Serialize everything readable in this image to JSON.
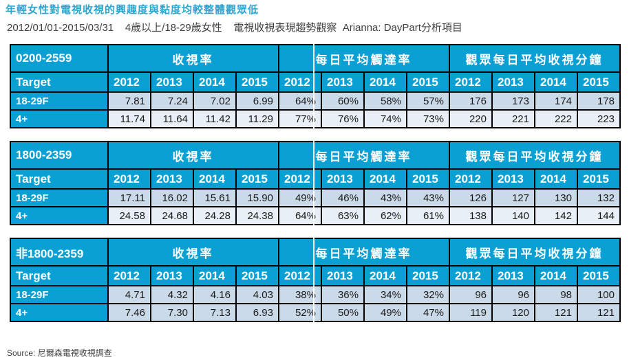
{
  "title": "年輕女性對電視收視的興趣度與黏度均較整體觀眾低",
  "subtitle": "2012/01/01-2015/03/31    4歲以上/18-29歲女性    電視收視表現趨勢觀察  Arianna: DayPart分析項目",
  "source": "Source: 尼爾森電視收視調查",
  "labels": {
    "target": "Target"
  },
  "colors": {
    "header_bg": "#0AA0D4",
    "header_text": "#FFFFFF",
    "title_text": "#2EA6D0",
    "subtitle_text": "#404040",
    "row_dark_bg": "#CBDAE9",
    "row_light_bg": "#E9EFF6",
    "border": "#000000",
    "guide_line": "#FFFFFF"
  },
  "chart_data": [
    {
      "type": "table",
      "daypart": "0200-2559",
      "groups": [
        "收視率",
        "每日平均觸達率",
        "觀眾每日平均收視分鐘"
      ],
      "years": [
        "2012",
        "2013",
        "2014",
        "2015"
      ],
      "rows": [
        {
          "target": "18-29F",
          "shade": "dark",
          "values": [
            "7.81",
            "7.24",
            "7.02",
            "6.99",
            "64%",
            "60%",
            "58%",
            "57%",
            "176",
            "173",
            "174",
            "178"
          ]
        },
        {
          "target": "4+",
          "shade": "light",
          "values": [
            "11.74",
            "11.64",
            "11.42",
            "11.29",
            "77%",
            "76%",
            "74%",
            "73%",
            "220",
            "221",
            "222",
            "223"
          ]
        }
      ]
    },
    {
      "type": "table",
      "daypart": "1800-2359",
      "groups": [
        "收視率",
        "每日平均觸達率",
        "觀眾每日平均收視分鐘"
      ],
      "years": [
        "2012",
        "2013",
        "2014",
        "2015"
      ],
      "rows": [
        {
          "target": "18-29F",
          "shade": "dark",
          "values": [
            "17.11",
            "16.02",
            "15.61",
            "15.90",
            "49%",
            "46%",
            "43%",
            "43%",
            "126",
            "127",
            "130",
            "132"
          ]
        },
        {
          "target": "4+",
          "shade": "light",
          "values": [
            "24.58",
            "24.68",
            "24.28",
            "24.38",
            "64%",
            "63%",
            "62%",
            "61%",
            "138",
            "140",
            "142",
            "144"
          ]
        }
      ]
    },
    {
      "type": "table",
      "daypart": "非1800-2359",
      "groups": [
        "收視率",
        "每日平均觸達率",
        "觀眾每日平均收視分鐘"
      ],
      "years": [
        "2012",
        "2013",
        "2014",
        "2015"
      ],
      "rows": [
        {
          "target": "18-29F",
          "shade": "dark",
          "values": [
            "4.71",
            "4.32",
            "4.16",
            "4.03",
            "38%",
            "36%",
            "34%",
            "32%",
            "96",
            "96",
            "98",
            "100"
          ]
        },
        {
          "target": "4+",
          "shade": "dark",
          "values": [
            "7.46",
            "7.30",
            "7.13",
            "6.93",
            "52%",
            "50%",
            "49%",
            "47%",
            "119",
            "120",
            "121",
            "121"
          ]
        }
      ]
    }
  ]
}
